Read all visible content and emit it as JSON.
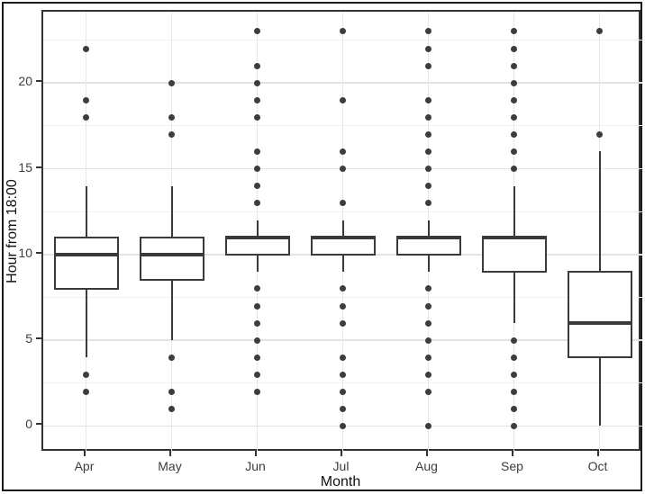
{
  "figure": {
    "x_axis": {
      "label": "Month",
      "tick_labels": [
        "Apr",
        "May",
        "Jun",
        "Jul",
        "Aug",
        "Sep",
        "Oct"
      ]
    },
    "y_axis": {
      "label": "Hour from 18:00",
      "tick_labels": [
        "0",
        "5",
        "10",
        "15",
        "20"
      ]
    }
  },
  "chart_data": {
    "type": "boxplot",
    "title": "",
    "xlabel": "Month",
    "ylabel": "Hour from 18:00",
    "categories": [
      "Apr",
      "May",
      "Jun",
      "Jul",
      "Aug",
      "Sep",
      "Oct"
    ],
    "y_ticks": [
      0,
      5,
      10,
      15,
      20
    ],
    "y_minor_gridlines": [
      2.5,
      7.5,
      12.5,
      17.5,
      22.5
    ],
    "ylim": [
      -1.55,
      24.15
    ],
    "grid": true,
    "legend": "none",
    "series": [
      {
        "month": "Apr",
        "whisker_low": 4,
        "q1": 8,
        "median": 10,
        "q3": 11,
        "whisker_high": 14,
        "outliers": [
          22,
          19,
          18,
          3,
          2
        ]
      },
      {
        "month": "May",
        "whisker_low": 5,
        "q1": 8.5,
        "median": 10,
        "q3": 11,
        "whisker_high": 14,
        "outliers": [
          20,
          18,
          17,
          4,
          2,
          1
        ]
      },
      {
        "month": "Jun",
        "whisker_low": 9,
        "q1": 10,
        "median": 11,
        "q3": 11,
        "whisker_high": 12,
        "outliers": [
          23,
          21,
          20,
          19,
          18,
          16,
          15,
          14,
          13,
          8,
          7,
          6,
          5,
          4,
          3,
          2
        ]
      },
      {
        "month": "Jul",
        "whisker_low": 9,
        "q1": 10,
        "median": 11,
        "q3": 11,
        "whisker_high": 12,
        "outliers": [
          23,
          19,
          16,
          15,
          13,
          8,
          7,
          6,
          4,
          3,
          2,
          1,
          0
        ]
      },
      {
        "month": "Aug",
        "whisker_low": 9,
        "q1": 10,
        "median": 11,
        "q3": 11,
        "whisker_high": 12,
        "outliers": [
          23,
          22,
          21,
          19,
          18,
          17,
          16,
          15,
          14,
          13,
          8,
          7,
          6,
          5,
          4,
          3,
          2,
          0
        ]
      },
      {
        "month": "Sep",
        "whisker_low": 6,
        "q1": 9,
        "median": 11,
        "q3": 11,
        "whisker_high": 14,
        "outliers": [
          23,
          22,
          21,
          20,
          19,
          18,
          17,
          16,
          15,
          5,
          4,
          3,
          2,
          1,
          0
        ]
      },
      {
        "month": "Oct",
        "whisker_low": 0,
        "q1": 4,
        "median": 6,
        "q3": 9,
        "whisker_high": 16,
        "outliers": [
          23,
          17
        ]
      }
    ],
    "colors": {
      "box_stroke": "#3a3a3a",
      "box_fill": "#ffffff",
      "outlier_dot": "#3d3d3d",
      "grid_major": "#e3e3e3",
      "grid_minor": "#f0f0f0",
      "panel_border": "#333333",
      "tick_label": "#3d3d3d",
      "axis_title": "#111111"
    }
  }
}
